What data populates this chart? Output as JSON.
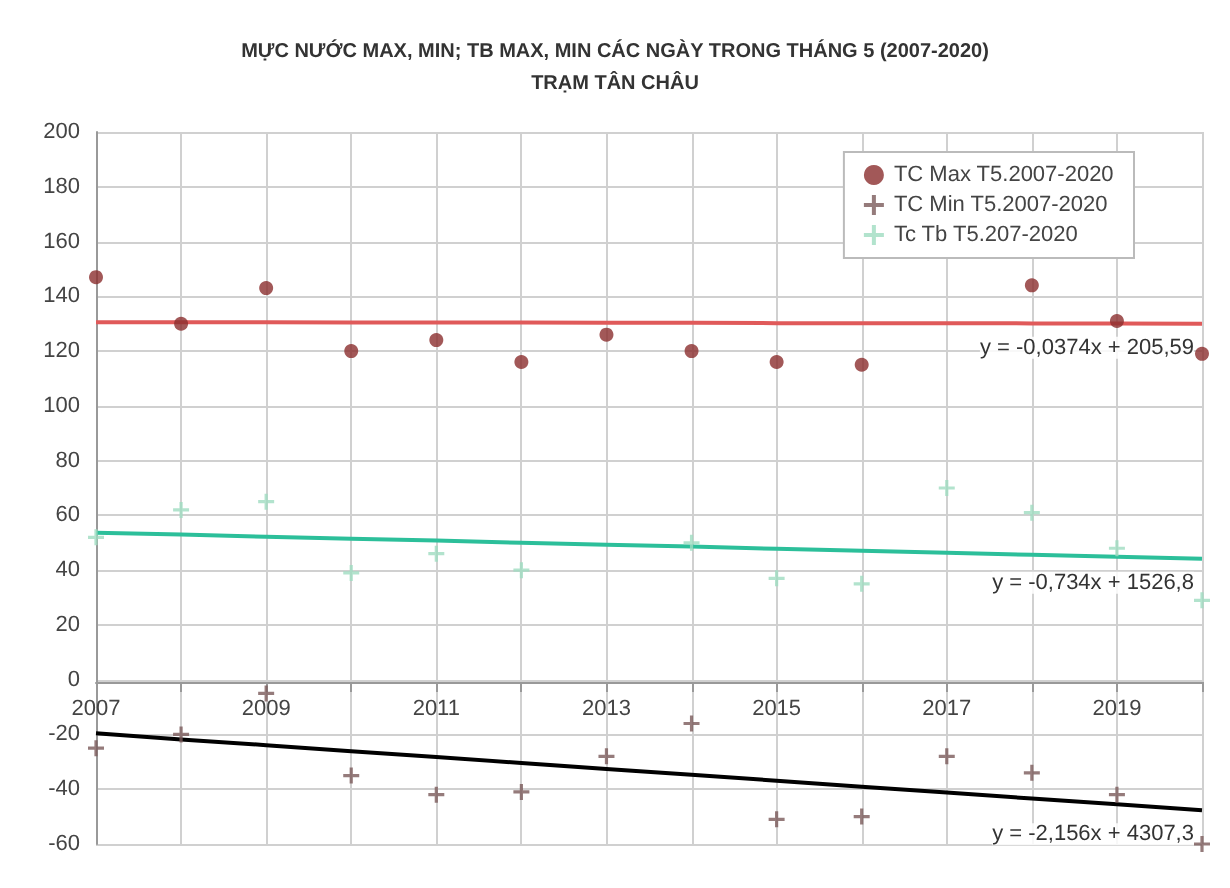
{
  "chart_data": {
    "type": "scatter",
    "title": "MỰC NƯỚC MAX, MIN; TB MAX, MIN CÁC NGÀY TRONG THÁNG 5 (2007-2020)",
    "subtitle": "TRẠM TÂN CHÂU",
    "x": [
      2007,
      2008,
      2009,
      2010,
      2011,
      2012,
      2013,
      2014,
      2015,
      2016,
      2017,
      2018,
      2019,
      2020
    ],
    "series": [
      {
        "name": "TC Max T5.2007-2020",
        "color": "#8b2e2e",
        "marker": "circle",
        "values": [
          147,
          130,
          143,
          120,
          124,
          116,
          126,
          120,
          116,
          115,
          null,
          144,
          131,
          119
        ]
      },
      {
        "name": "TC Min T5.2007-2020",
        "color": "#7a5a5a",
        "marker": "cross",
        "values": [
          -25,
          -20,
          -5,
          -35,
          -42,
          -41,
          -28,
          -16,
          -51,
          -50,
          -28,
          -34,
          -42,
          -60
        ]
      },
      {
        "name": "Tc Tb T5.207-2020",
        "color": "#9fdcc0",
        "marker": "cross",
        "values": [
          52,
          62,
          65,
          39,
          46,
          40,
          null,
          50,
          37,
          35,
          70,
          61,
          48,
          29
        ]
      },
      {
        "type": "line",
        "color": "#e05a5a",
        "marker": "none",
        "values": [
          130.5,
          130.5,
          130.5,
          130.4,
          130.4,
          130.4,
          130.3,
          130.3,
          130.2,
          130.2,
          130.2,
          130.1,
          130.1,
          130.0
        ]
      },
      {
        "type": "line",
        "color": "#2cbf9a",
        "marker": "none",
        "values": [
          53.7,
          53.0,
          52.2,
          51.5,
          50.8,
          50.0,
          49.3,
          48.6,
          47.8,
          47.1,
          46.4,
          45.6,
          44.9,
          44.2
        ]
      },
      {
        "type": "line",
        "color": "#000000",
        "marker": "none",
        "values": [
          -19.6,
          -21.8,
          -23.9,
          -26.1,
          -28.2,
          -30.4,
          -32.6,
          -34.7,
          -36.9,
          -39.1,
          -41.2,
          -43.4,
          -45.5,
          -47.7
        ]
      }
    ],
    "annotations": [
      "y = -0,0374x + 205,59",
      "y = -0,734x + 1526,8",
      "y = -2,156x + 4307,3"
    ],
    "xlim": [
      2007,
      2020
    ],
    "xticks": [
      2007,
      {
        "value": 2008,
        "label": null
      },
      2009,
      {
        "value": 2010,
        "label": null
      },
      2011,
      {
        "value": 2012,
        "label": null
      },
      2013,
      {
        "value": 2014,
        "label": null
      },
      2015,
      {
        "value": 2016,
        "label": null
      },
      2017,
      {
        "value": 2018,
        "label": null
      },
      2019,
      {
        "value": 2020,
        "label": null
      }
    ],
    "ylim": [
      -60,
      200
    ],
    "yticks": [
      -60,
      -40,
      -20,
      0,
      20,
      40,
      60,
      80,
      100,
      120,
      140,
      160,
      180,
      200
    ],
    "grid": true,
    "legend": "top right"
  }
}
